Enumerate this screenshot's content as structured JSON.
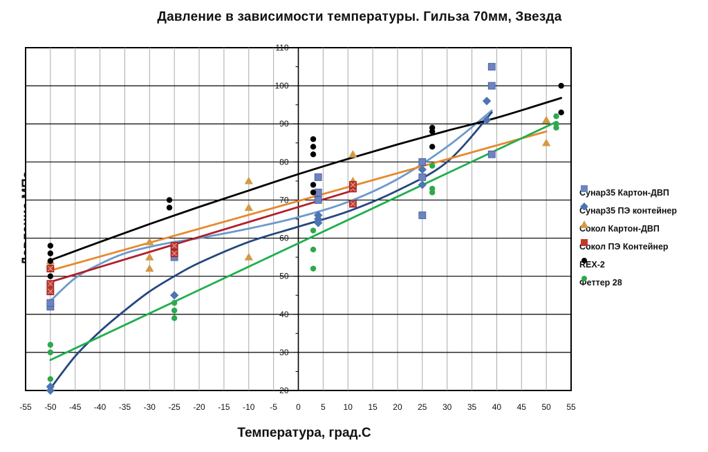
{
  "chart_data": {
    "type": "scatter",
    "title": "Давление в зависимости температуры.  Гильза 70мм, Звезда",
    "xlabel": "Температура, град.С",
    "ylabel": "Давление  МПа",
    "xlim": [
      -55,
      55
    ],
    "ylim": [
      20,
      110
    ],
    "x_ticks": [
      "-55",
      "-50",
      "-45",
      "-40",
      "-35",
      "-30",
      "-25",
      "-20",
      "-15",
      "-10",
      "-5",
      "0",
      "5",
      "10",
      "15",
      "20",
      "25",
      "30",
      "35",
      "40",
      "45",
      "50",
      "55"
    ],
    "y_ticks": [
      "20",
      "30",
      "40",
      "50",
      "60",
      "70",
      "80",
      "90",
      "100",
      "110"
    ],
    "grid": true,
    "legend_position": "right",
    "series": [
      {
        "name": "Сунар35 Картон-ДВП",
        "marker": "square",
        "color": "#6f83bf",
        "points": [
          [
            -50,
            42
          ],
          [
            -50,
            43
          ],
          [
            -25,
            55
          ],
          [
            -25,
            57
          ],
          [
            -25,
            58
          ],
          [
            4,
            70
          ],
          [
            4,
            72
          ],
          [
            4,
            76
          ],
          [
            25,
            66
          ],
          [
            25,
            76
          ],
          [
            25,
            80
          ],
          [
            39,
            82
          ],
          [
            39,
            100
          ],
          [
            39,
            105
          ]
        ],
        "trend": {
          "type": "poly",
          "color": "#6b99cc",
          "points": [
            [
              -50,
              43.5
            ],
            [
              -45,
              49.5
            ],
            [
              -40,
              53.2
            ],
            [
              -35,
              56
            ],
            [
              -30,
              57.7
            ],
            [
              -25,
              59
            ],
            [
              -20,
              60
            ],
            [
              -10,
              62.5
            ],
            [
              0,
              65.5
            ],
            [
              10,
              69.5
            ],
            [
              20,
              75.5
            ],
            [
              30,
              84
            ],
            [
              39,
              93.5
            ]
          ]
        }
      },
      {
        "name": "Сунар35 ПЭ контейнер",
        "marker": "diamond",
        "color": "#4d74b3",
        "points": [
          [
            -50,
            20
          ],
          [
            -50,
            21
          ],
          [
            -25,
            45
          ],
          [
            4,
            64
          ],
          [
            4,
            65
          ],
          [
            4,
            66
          ],
          [
            25,
            74
          ],
          [
            25,
            78
          ],
          [
            38,
            91
          ],
          [
            38,
            96
          ]
        ],
        "trend": {
          "type": "poly",
          "color": "#24477d",
          "points": [
            [
              -50,
              20.5
            ],
            [
              -45,
              29
            ],
            [
              -40,
              35.5
            ],
            [
              -35,
              41
            ],
            [
              -30,
              46
            ],
            [
              -25,
              50
            ],
            [
              -20,
              53.5
            ],
            [
              -10,
              59
            ],
            [
              0,
              63
            ],
            [
              10,
              67
            ],
            [
              20,
              72.5
            ],
            [
              30,
              80
            ],
            [
              39,
              93
            ]
          ]
        }
      },
      {
        "name": "Сокол Картон-ДВП",
        "marker": "triangle",
        "color": "#d39a43",
        "points": [
          [
            -50,
            53
          ],
          [
            -50,
            54
          ],
          [
            -30,
            52
          ],
          [
            -30,
            55
          ],
          [
            -30,
            59
          ],
          [
            -10,
            55
          ],
          [
            -10,
            68
          ],
          [
            -10,
            75
          ],
          [
            11,
            75
          ],
          [
            11,
            82
          ],
          [
            50,
            85
          ],
          [
            50,
            91
          ]
        ],
        "trend": {
          "type": "linear",
          "color": "#e6882e",
          "points": [
            [
              -50,
              51.5
            ],
            [
              50,
              88
            ]
          ]
        }
      },
      {
        "name": "Сокол ПЭ Контейнер",
        "marker": "square-x",
        "color": "#c0392b",
        "points": [
          [
            -50,
            46
          ],
          [
            -50,
            48
          ],
          [
            -50,
            52
          ],
          [
            -25,
            56
          ],
          [
            -25,
            58
          ],
          [
            11,
            69
          ],
          [
            11,
            73
          ],
          [
            11,
            74
          ]
        ],
        "trend": {
          "type": "linear",
          "color": "#b11f2a",
          "points": [
            [
              -50,
              48.5
            ],
            [
              11,
              72.5
            ]
          ]
        }
      },
      {
        "name": "REX-2",
        "marker": "dot",
        "color": "#000000",
        "points": [
          [
            -50,
            50
          ],
          [
            -50,
            54
          ],
          [
            -50,
            56
          ],
          [
            -50,
            58
          ],
          [
            -26,
            68
          ],
          [
            -26,
            70
          ],
          [
            3,
            72
          ],
          [
            3,
            74
          ],
          [
            3,
            82
          ],
          [
            3,
            84
          ],
          [
            3,
            86
          ],
          [
            27,
            84
          ],
          [
            27,
            88
          ],
          [
            27,
            89
          ],
          [
            53,
            93
          ],
          [
            53,
            100
          ]
        ],
        "trend": {
          "type": "log",
          "color": "#000000",
          "points": [
            [
              -50,
              54.2
            ],
            [
              -40,
              59
            ],
            [
              -30,
              63.7
            ],
            [
              -20,
              68.2
            ],
            [
              -10,
              72.5
            ],
            [
              0,
              76.8
            ],
            [
              10,
              80.8
            ],
            [
              20,
              84.6
            ],
            [
              30,
              88.2
            ],
            [
              40,
              91.6
            ],
            [
              53,
              96.8
            ]
          ]
        }
      },
      {
        "name": "Феттер 28",
        "marker": "dot",
        "color": "#2ea84e",
        "points": [
          [
            -50,
            23
          ],
          [
            -50,
            30
          ],
          [
            -50,
            32
          ],
          [
            -25,
            39
          ],
          [
            -25,
            41
          ],
          [
            -25,
            43
          ],
          [
            3,
            52
          ],
          [
            3,
            57
          ],
          [
            3,
            62
          ],
          [
            27,
            72
          ],
          [
            27,
            73
          ],
          [
            27,
            79
          ],
          [
            52,
            89
          ],
          [
            52,
            90
          ],
          [
            52,
            92
          ]
        ],
        "trend": {
          "type": "linear",
          "color": "#1fae4c",
          "points": [
            [
              -50,
              28
            ],
            [
              52,
              90.5
            ]
          ]
        }
      }
    ]
  }
}
